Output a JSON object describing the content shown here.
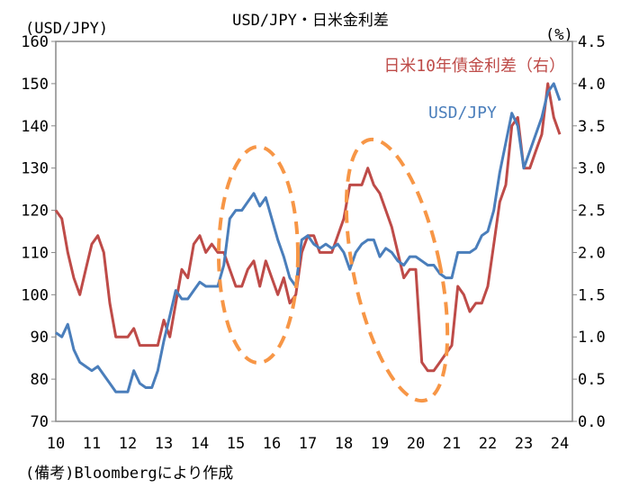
{
  "chart_data": {
    "type": "line",
    "title": "USD/JPY・日米金利差",
    "left_axis_label": "(USD/JPY)",
    "right_axis_label": "(%)",
    "left_ylim": [
      70,
      160
    ],
    "left_ticks": [
      "70",
      "80",
      "90",
      "100",
      "110",
      "120",
      "130",
      "140",
      "150",
      "160"
    ],
    "right_ylim": [
      0,
      4.5
    ],
    "right_ticks": [
      "0.0",
      "0.5",
      "1.0",
      "1.5",
      "2.0",
      "2.5",
      "3.0",
      "3.5",
      "4.0",
      "4.5"
    ],
    "x_ticks": [
      "10",
      "11",
      "12",
      "13",
      "14",
      "15",
      "16",
      "17",
      "18",
      "19",
      "20",
      "21",
      "22",
      "23",
      "24"
    ],
    "grid": false,
    "colors": {
      "usdjpy": "#4a7ebb",
      "spread": "#be4b48",
      "highlight": "#f79646"
    },
    "dates": [
      "2010-01",
      "2010-03",
      "2010-05",
      "2010-07",
      "2010-09",
      "2010-11",
      "2011-01",
      "2011-03",
      "2011-05",
      "2011-07",
      "2011-09",
      "2011-11",
      "2012-01",
      "2012-03",
      "2012-05",
      "2012-07",
      "2012-09",
      "2012-11",
      "2013-01",
      "2013-03",
      "2013-05",
      "2013-07",
      "2013-09",
      "2013-11",
      "2014-01",
      "2014-03",
      "2014-05",
      "2014-07",
      "2014-09",
      "2014-11",
      "2015-01",
      "2015-03",
      "2015-05",
      "2015-07",
      "2015-09",
      "2015-11",
      "2016-01",
      "2016-03",
      "2016-05",
      "2016-07",
      "2016-09",
      "2016-11",
      "2017-01",
      "2017-03",
      "2017-05",
      "2017-07",
      "2017-09",
      "2017-11",
      "2018-01",
      "2018-03",
      "2018-05",
      "2018-07",
      "2018-09",
      "2018-11",
      "2019-01",
      "2019-03",
      "2019-05",
      "2019-07",
      "2019-09",
      "2019-11",
      "2020-01",
      "2020-03",
      "2020-05",
      "2020-07",
      "2020-09",
      "2020-11",
      "2021-01",
      "2021-03",
      "2021-05",
      "2021-07",
      "2021-09",
      "2021-11",
      "2022-01",
      "2022-03",
      "2022-05",
      "2022-07",
      "2022-09",
      "2022-11",
      "2023-01",
      "2023-03",
      "2023-05",
      "2023-07",
      "2023-09",
      "2023-11",
      "2024-01"
    ],
    "series": [
      {
        "name": "USD/JPY",
        "axis": "left",
        "values": [
          91,
          90,
          93,
          87,
          84,
          83,
          82,
          83,
          81,
          79,
          77,
          77,
          77,
          82,
          79,
          78,
          78,
          82,
          89,
          95,
          101,
          99,
          99,
          101,
          103,
          102,
          102,
          102,
          107,
          118,
          120,
          120,
          122,
          124,
          121,
          123,
          118,
          113,
          109,
          104,
          102,
          113,
          114,
          112,
          111,
          112,
          111,
          112,
          110,
          106,
          110,
          112,
          113,
          113,
          109,
          111,
          110,
          108,
          107,
          109,
          109,
          108,
          107,
          107,
          105,
          104,
          104,
          110,
          110,
          110,
          111,
          114,
          115,
          120,
          129,
          136,
          143,
          140,
          130,
          134,
          138,
          142,
          148,
          150,
          146
        ]
      },
      {
        "name": "日米10年債金利差（右）",
        "axis": "right",
        "values": [
          2.5,
          2.4,
          2.0,
          1.7,
          1.5,
          1.8,
          2.1,
          2.2,
          2.0,
          1.4,
          1.0,
          1.0,
          1.0,
          1.1,
          0.9,
          0.9,
          0.9,
          0.9,
          1.2,
          1.0,
          1.4,
          1.8,
          1.7,
          2.1,
          2.2,
          2.0,
          2.1,
          2.0,
          2.0,
          1.8,
          1.6,
          1.6,
          1.8,
          1.9,
          1.6,
          1.9,
          1.7,
          1.5,
          1.7,
          1.4,
          1.5,
          2.0,
          2.2,
          2.2,
          2.0,
          2.0,
          2.0,
          2.2,
          2.4,
          2.8,
          2.8,
          2.8,
          3.0,
          2.8,
          2.7,
          2.5,
          2.3,
          2.0,
          1.7,
          1.8,
          1.8,
          0.7,
          0.6,
          0.6,
          0.7,
          0.8,
          0.9,
          1.6,
          1.5,
          1.3,
          1.4,
          1.4,
          1.6,
          2.1,
          2.6,
          2.8,
          3.5,
          3.6,
          3.0,
          3.0,
          3.2,
          3.4,
          4.0,
          3.6,
          3.4
        ]
      }
    ],
    "series_labels": {
      "spread": "日米10年債金利差（右）",
      "usdjpy": "USD/JPY"
    }
  },
  "footer": {
    "note": "(備考)Bloombergにより作成"
  }
}
